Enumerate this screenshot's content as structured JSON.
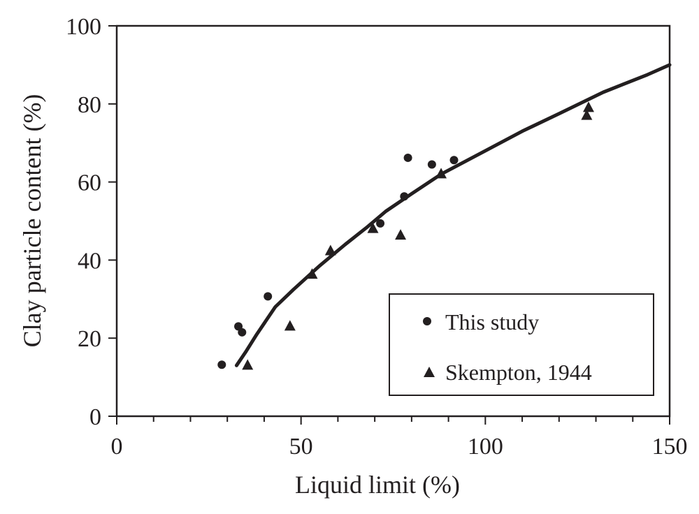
{
  "chart_data": {
    "type": "scatter",
    "title": "",
    "xlabel": "Liquid limit (%)",
    "ylabel": "Clay particle content (%)",
    "xlim": [
      0,
      150
    ],
    "ylim": [
      0,
      100
    ],
    "x_ticks": [
      0,
      50,
      100,
      150
    ],
    "x_minor_step": 10,
    "y_ticks": [
      0,
      20,
      40,
      60,
      80,
      100
    ],
    "grid": false,
    "legend_position": "bottom-right",
    "colors": {
      "ink": "#231f20"
    },
    "series": [
      {
        "name": "This study",
        "marker": "circle",
        "points": [
          {
            "x": 28.5,
            "y": 13.2
          },
          {
            "x": 33.0,
            "y": 23.0
          },
          {
            "x": 34.0,
            "y": 21.5
          },
          {
            "x": 41.0,
            "y": 30.7
          },
          {
            "x": 71.5,
            "y": 49.4
          },
          {
            "x": 78.0,
            "y": 56.3
          },
          {
            "x": 79.0,
            "y": 66.2
          },
          {
            "x": 85.5,
            "y": 64.5
          },
          {
            "x": 91.5,
            "y": 65.6
          }
        ]
      },
      {
        "name": "Skempton, 1944",
        "marker": "triangle",
        "points": [
          {
            "x": 35.5,
            "y": 13.0
          },
          {
            "x": 47.0,
            "y": 23.0
          },
          {
            "x": 53.0,
            "y": 36.3
          },
          {
            "x": 58.0,
            "y": 42.3
          },
          {
            "x": 69.5,
            "y": 48.0
          },
          {
            "x": 77.0,
            "y": 46.3
          },
          {
            "x": 88.0,
            "y": 62.0
          },
          {
            "x": 127.5,
            "y": 77.0
          },
          {
            "x": 128.0,
            "y": 79.0
          }
        ]
      }
    ],
    "trend_line": [
      {
        "x": 32.5,
        "y": 13.0
      },
      {
        "x": 35.0,
        "y": 16.5
      },
      {
        "x": 38.0,
        "y": 21.0
      },
      {
        "x": 43.0,
        "y": 28.0
      },
      {
        "x": 48.0,
        "y": 32.5
      },
      {
        "x": 55.0,
        "y": 38.5
      },
      {
        "x": 62.0,
        "y": 44.0
      },
      {
        "x": 68.0,
        "y": 48.5
      },
      {
        "x": 73.0,
        "y": 52.5
      },
      {
        "x": 80.0,
        "y": 57.0
      },
      {
        "x": 88.0,
        "y": 62.0
      },
      {
        "x": 100.0,
        "y": 68.0
      },
      {
        "x": 110.0,
        "y": 73.0
      },
      {
        "x": 120.0,
        "y": 77.5
      },
      {
        "x": 132.0,
        "y": 83.0
      },
      {
        "x": 144.0,
        "y": 87.5
      },
      {
        "x": 150.0,
        "y": 90.0
      }
    ]
  }
}
